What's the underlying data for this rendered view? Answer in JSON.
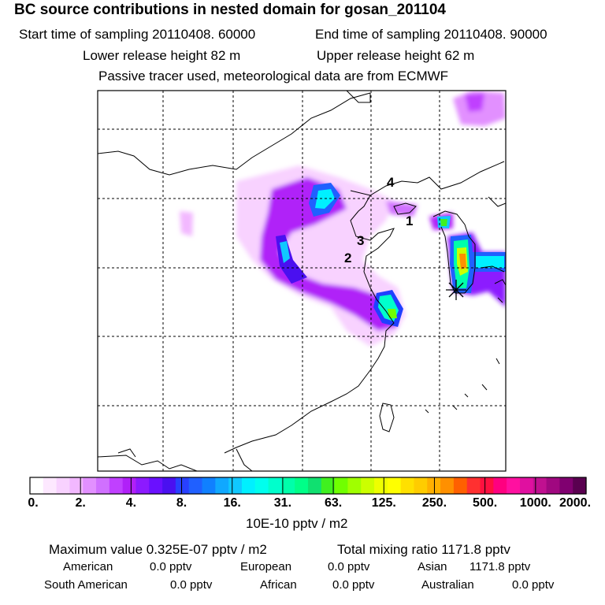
{
  "header": {
    "title": "BC  source contributions in nested domain for gosan_201104",
    "start_label": "Start time of sampling 20110408. 60000",
    "end_label": "End time of sampling 20110408. 90000",
    "lower_label": "Lower release height   82 m",
    "upper_label": "Upper release height   62 m",
    "tracer_label": "Passive tracer used, meteorological data are from ECMWF"
  },
  "chart_data": {
    "type": "heatmap",
    "title": "BC  source contributions in nested domain for gosan_201104",
    "grid": true,
    "colorbar": {
      "unit": "10E-10 pptv / m2",
      "ticks": [
        "0.",
        "2.",
        "4.",
        "8.",
        "16.",
        "31.",
        "63.",
        "125.",
        "250.",
        "500.",
        "1000.",
        "2000."
      ],
      "colors": [
        "#ffffff",
        "#fde8ff",
        "#f8d2ff",
        "#f2b8ff",
        "#e290ff",
        "#d070ff",
        "#c040ff",
        "#b020f8",
        "#8c1aff",
        "#6a10ff",
        "#4a10f0",
        "#2840ff",
        "#2060ff",
        "#1080ff",
        "#10a8ff",
        "#10c8ff",
        "#00f0ff",
        "#00ffee",
        "#00ffcc",
        "#00ffaa",
        "#00ff88",
        "#10e070",
        "#40f020",
        "#70ff00",
        "#a0ff00",
        "#ccff00",
        "#eeff00",
        "#ffff00",
        "#ffe000",
        "#ffcc00",
        "#ffb000",
        "#ff9000",
        "#ff6000",
        "#ff3030",
        "#ff1040",
        "#ff0080",
        "#ff10a0",
        "#e010a0",
        "#c01090",
        "#a00880",
        "#800070",
        "#5a0050"
      ]
    },
    "site_labels": [
      "1",
      "2",
      "3",
      "4"
    ],
    "stats": {
      "max_label": "Maximum value  0.325E-07 pptv / m2",
      "total_label": "Total mixing ratio     1171.8 pptv"
    },
    "regions": [
      {
        "name": "American",
        "value": "0.0 pptv"
      },
      {
        "name": "European",
        "value": "0.0 pptv"
      },
      {
        "name": "Asian",
        "value": "1171.8 pptv"
      },
      {
        "name": "South American",
        "value": "0.0 pptv"
      },
      {
        "name": "African",
        "value": "0.0 pptv"
      },
      {
        "name": "Australian",
        "value": "0.0 pptv"
      }
    ]
  }
}
